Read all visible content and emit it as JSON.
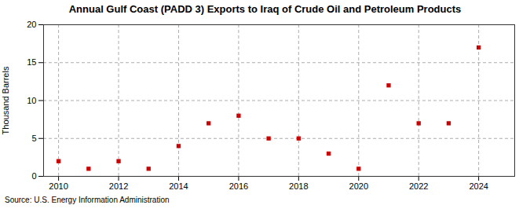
{
  "chart_data": {
    "type": "scatter",
    "title": "Annual Gulf Coast (PADD 3) Exports to Iraq of Crude Oil and Petroleum Products",
    "ylabel": "Thousand Barrels",
    "annotation": "Source: U.S. Energy Information Administration",
    "x": [
      2010,
      2011,
      2012,
      2013,
      2014,
      2015,
      2016,
      2017,
      2018,
      2019,
      2020,
      2021,
      2022,
      2023,
      2024
    ],
    "values": [
      2,
      1,
      2,
      1,
      4,
      7,
      8,
      5,
      5,
      3,
      1,
      12,
      7,
      7,
      17
    ],
    "color": "#cc0000",
    "marker": "square",
    "xlim": [
      2009.5,
      2025.2
    ],
    "ylim": [
      0,
      20
    ],
    "xticks": [
      2010,
      2012,
      2014,
      2016,
      2018,
      2020,
      2022,
      2024
    ],
    "yticks": [
      0,
      5,
      10,
      15,
      20
    ],
    "grid": true
  }
}
